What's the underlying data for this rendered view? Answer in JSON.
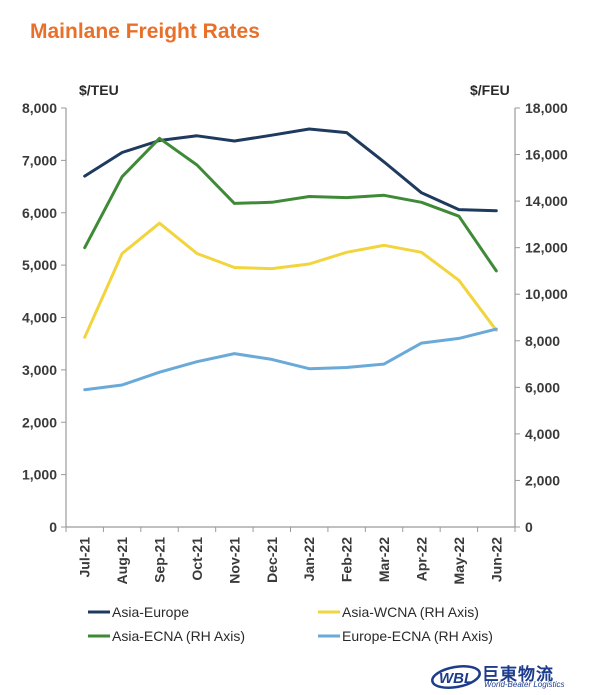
{
  "chart_data": {
    "type": "line",
    "title": "Mainlane Freight Rates",
    "left_unit": "$/TEU",
    "right_unit": "$/FEU",
    "categories": [
      "Jul-21",
      "Aug-21",
      "Sep-21",
      "Oct-21",
      "Nov-21",
      "Dec-21",
      "Jan-22",
      "Feb-22",
      "Mar-22",
      "Apr-22",
      "May-22",
      "Jun-22"
    ],
    "left_axis": {
      "min": 0,
      "max": 8000,
      "step": 1000,
      "ticks": [
        "0",
        "1,000",
        "2,000",
        "3,000",
        "4,000",
        "5,000",
        "6,000",
        "7,000",
        "8,000"
      ]
    },
    "right_axis": {
      "min": 0,
      "max": 18000,
      "step": 2000,
      "ticks": [
        "0",
        "2,000",
        "4,000",
        "6,000",
        "8,000",
        "10,000",
        "12,000",
        "14,000",
        "16,000",
        "18,000"
      ]
    },
    "grid": false,
    "legend_position": "bottom",
    "series": [
      {
        "name": "Asia-Europe",
        "axis": "left",
        "color": "#1f3a5f",
        "values": [
          6700,
          7150,
          7380,
          7470,
          7370,
          7480,
          7600,
          7530,
          6970,
          6380,
          6060,
          6040
        ]
      },
      {
        "name": "Asia-WCNA (RH Axis)",
        "axis": "right",
        "color": "#f2d43d",
        "values": [
          8150,
          11750,
          13050,
          11750,
          11150,
          11100,
          11300,
          11800,
          12100,
          11800,
          10600,
          8450
        ]
      },
      {
        "name": "Asia-ECNA (RH Axis)",
        "axis": "right",
        "color": "#3f8a37",
        "values": [
          12000,
          15050,
          16700,
          15550,
          13900,
          13950,
          14200,
          14150,
          14250,
          13950,
          13350,
          11000
        ]
      },
      {
        "name": "Europe-ECNA (RH Axis)",
        "axis": "right",
        "color": "#6aaad8",
        "values": [
          5900,
          6100,
          6650,
          7100,
          7450,
          7200,
          6800,
          6850,
          7000,
          7900,
          8100,
          8500
        ]
      }
    ]
  },
  "logo": {
    "cn_text": "巨東物流",
    "en_text": "World-Beater Logistics",
    "mark_text": "WBL"
  }
}
